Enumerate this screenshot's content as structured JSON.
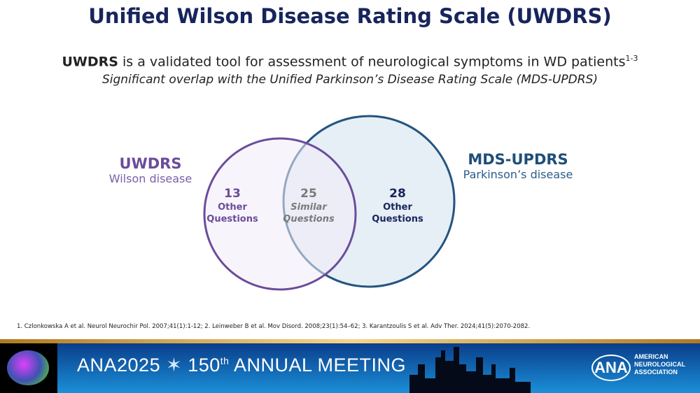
{
  "title": "Unified Wilson Disease Rating Scale (UWDRS)",
  "subtitle": {
    "bold": "UWDRS",
    "text": " is a validated tool for assessment of neurological symptoms in WD patients",
    "sup": "1-3"
  },
  "subtitle2": "Significant overlap with the Unified Parkinson’s Disease Rating Scale (MDS-UPDRS)",
  "venn": {
    "left": {
      "name": "UWDRS",
      "desc": "Wilson disease",
      "count": "13",
      "l1": "Other",
      "l2": "Questions",
      "color": "#6b4c9a"
    },
    "overlap": {
      "count": "25",
      "l1": "Similar",
      "l2": "Questions",
      "color": "#7a7a7a"
    },
    "right": {
      "name": "MDS-UPDRS",
      "desc": "Parkinson’s disease",
      "count": "28",
      "l1": "Other",
      "l2": "Questions",
      "color": "#1f4e79"
    }
  },
  "references": "1. Czlonkowska A et al. Neurol Neurochir Pol. 2007;41(1):1-12; 2. Leinweber B et al. Mov Disord. 2008;23(1):54–62; 3. Karantzoulis S et al. Adv Ther. 2024;41(5):2070-2082.",
  "footer": {
    "meeting_a": "ANA2025",
    "meeting_b": " 150",
    "sup": "th",
    "meeting_c": " ANNUAL MEETING",
    "logo": "ANA",
    "org": [
      "AMERICAN",
      "NEUROLOGICAL",
      "ASSOCIATION"
    ]
  }
}
